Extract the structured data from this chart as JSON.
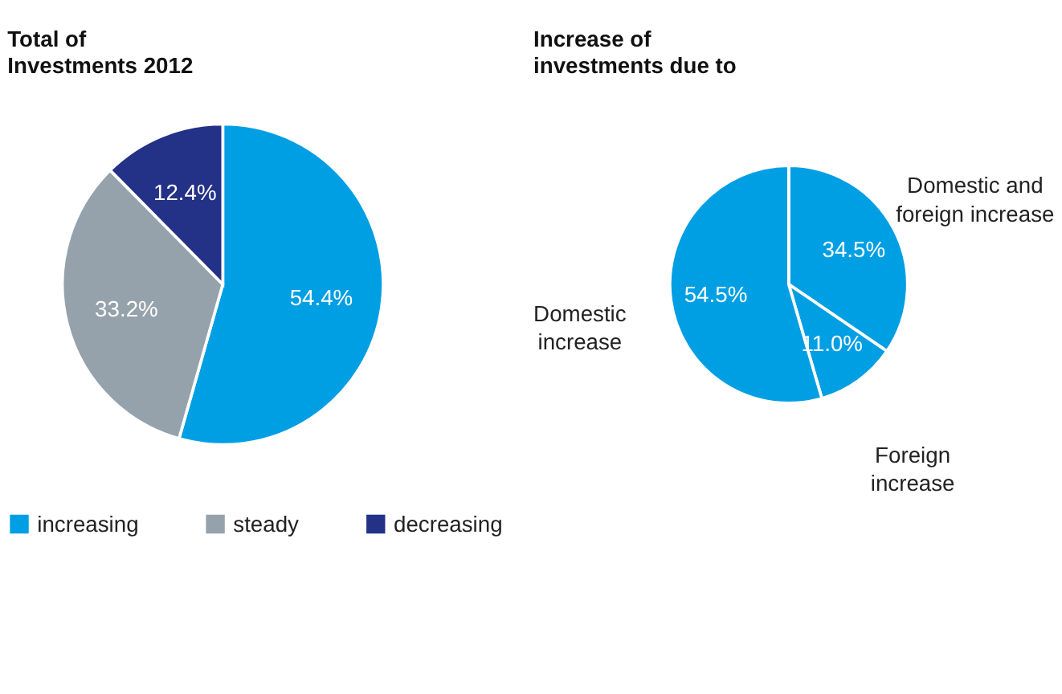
{
  "chart_data": [
    {
      "type": "pie",
      "title": "Total of Investments 2012",
      "categories": [
        "increasing",
        "steady",
        "decreasing"
      ],
      "values": [
        54.4,
        33.2,
        12.4
      ],
      "colors": [
        "#009fe3",
        "#95a2ac",
        "#233186"
      ],
      "value_labels": [
        "54.4%",
        "33.2%",
        "12.4%"
      ],
      "legend": "bottom"
    },
    {
      "type": "pie",
      "title": "Increase of investments due to",
      "categories": [
        "Domestic and foreign increase",
        "Foreign increase",
        "Domestic increase"
      ],
      "values": [
        34.5,
        11.0,
        54.5
      ],
      "colors": [
        "#009fe3",
        "#009fe3",
        "#009fe3"
      ],
      "value_labels": [
        "34.5%",
        "11.0%",
        "54.5%"
      ],
      "legend": false
    }
  ]
}
